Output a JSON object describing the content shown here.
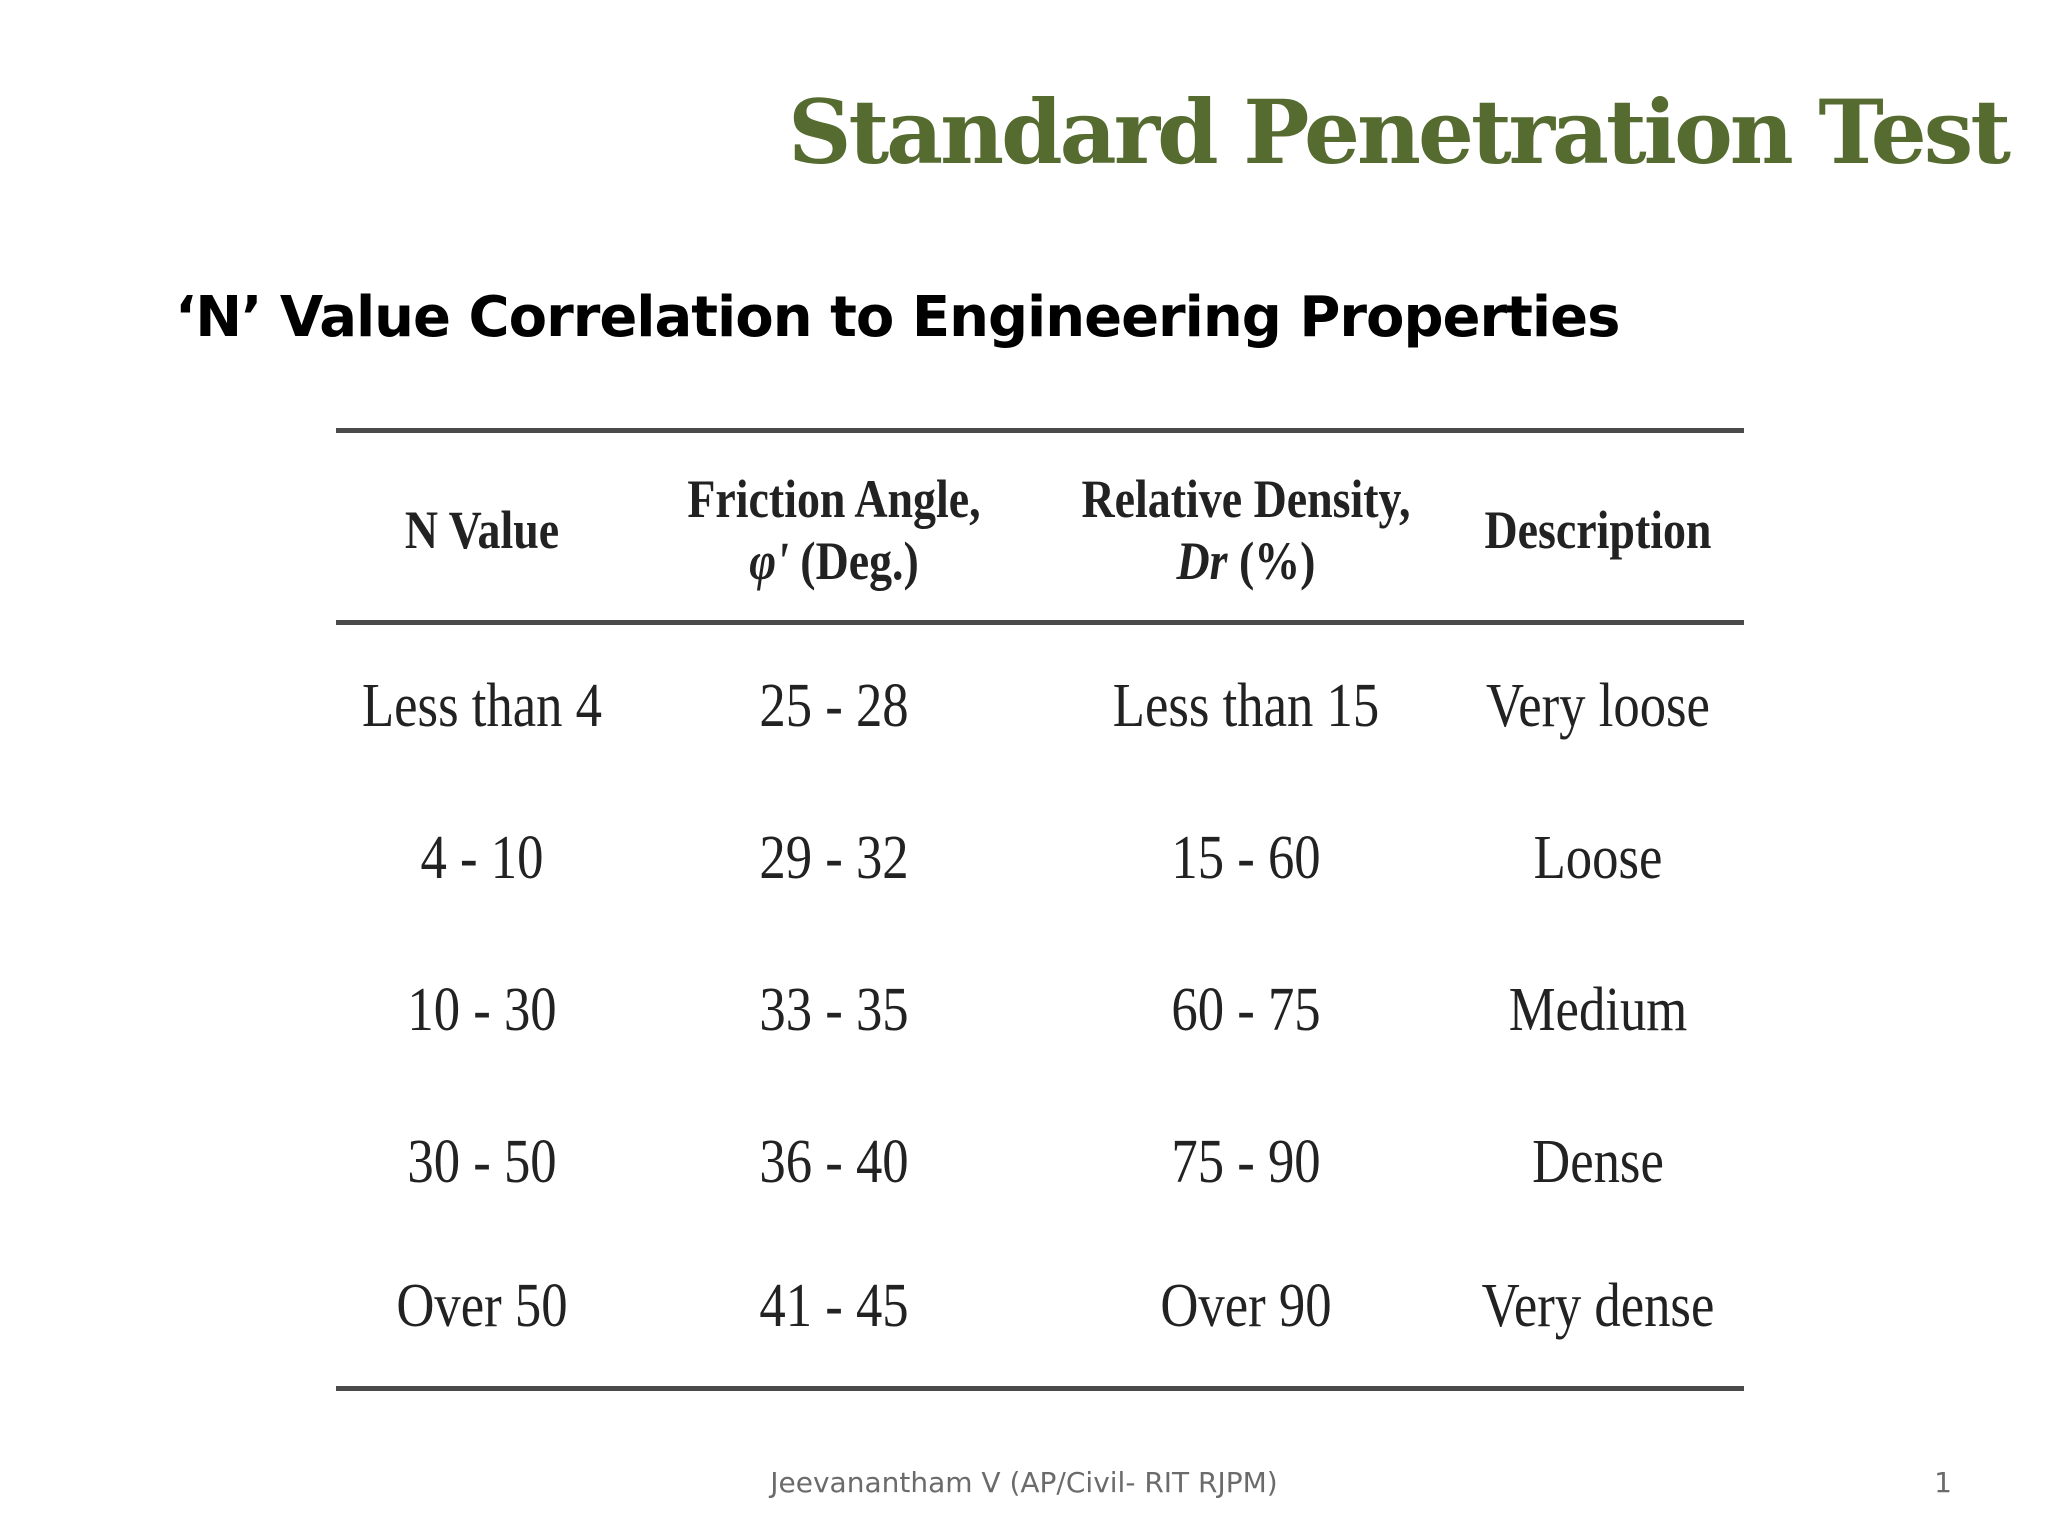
{
  "slide": {
    "title": "Standard Penetration Test",
    "subtitle": "‘N’ Value Correlation to Engineering Properties",
    "title_color": "#556b2f"
  },
  "table": {
    "headers": [
      {
        "line1": "N Value",
        "line2": ""
      },
      {
        "line1": "Friction Angle,",
        "line2_symbol": "φ'",
        "line2_rest": " (Deg.)"
      },
      {
        "line1": "Relative Density,",
        "line2_symbol": "Dr",
        "line2_rest": " (%)"
      },
      {
        "line1": "Description",
        "line2": ""
      }
    ],
    "rows": [
      [
        "Less than 4",
        "25 - 28",
        "Less than 15",
        "Very loose"
      ],
      [
        "4 - 10",
        "29 - 32",
        "15 - 60",
        "Loose"
      ],
      [
        "10 - 30",
        "33 - 35",
        "60 - 75",
        "Medium"
      ],
      [
        "30 - 50",
        "36 - 40",
        "75 - 90",
        "Dense"
      ],
      [
        "Over 50",
        "41 - 45",
        "Over 90",
        "Very dense"
      ]
    ]
  },
  "footer": {
    "author": "Jeevanantham V (AP/Civil- RIT RJPM)",
    "page_number": "1"
  }
}
